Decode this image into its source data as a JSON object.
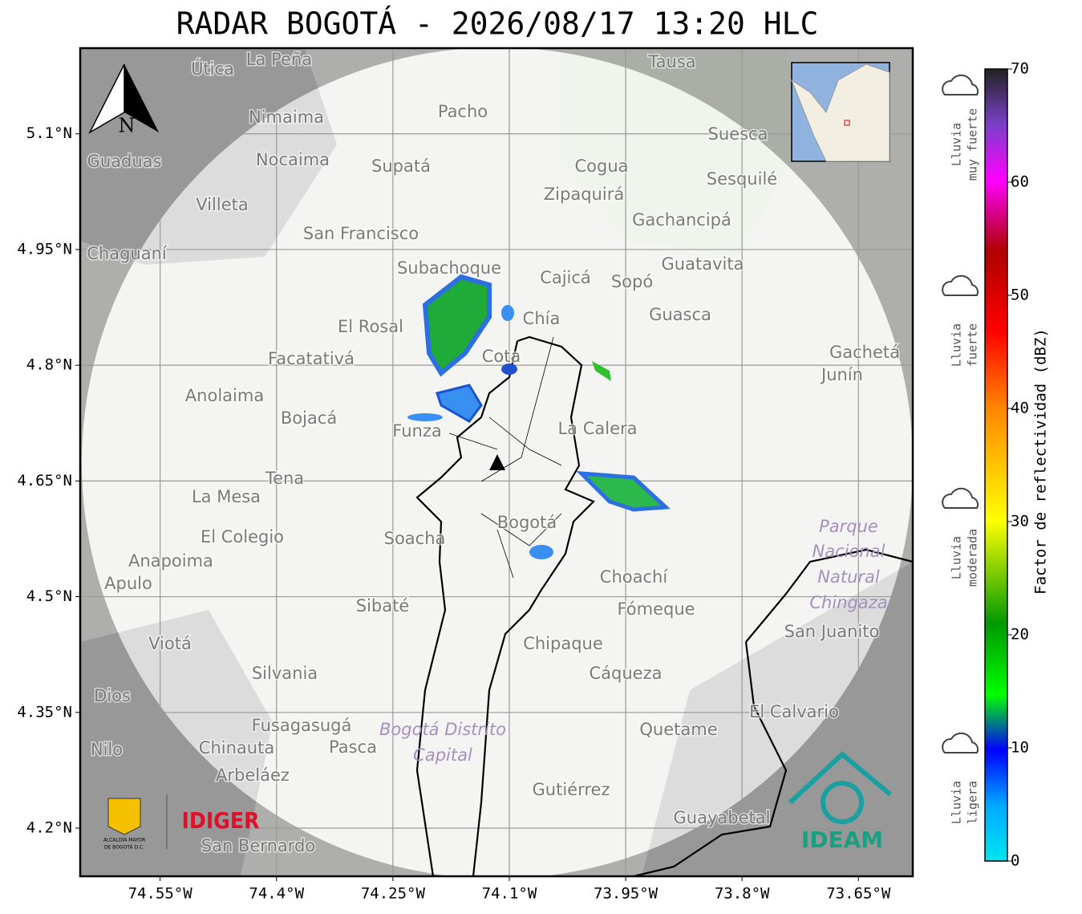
{
  "title": "RADAR BOGOTÁ - 2026/08/17 13:20 HLC",
  "map": {
    "xlim": [
      -74.653,
      -73.58
    ],
    "ylim": [
      4.1376,
      5.211
    ],
    "xticks": [
      {
        "value": -74.55,
        "label": "74.55°W"
      },
      {
        "value": -74.4,
        "label": "74.4°W"
      },
      {
        "value": -74.25,
        "label": "74.25°W"
      },
      {
        "value": -74.1,
        "label": "74.1°W"
      },
      {
        "value": -73.95,
        "label": "73.95°W"
      },
      {
        "value": -73.8,
        "label": "73.8°W"
      },
      {
        "value": -73.65,
        "label": "73.65°W"
      }
    ],
    "yticks": [
      {
        "value": 5.1,
        "label": "5.1°N"
      },
      {
        "value": 4.95,
        "label": "4.95°N"
      },
      {
        "value": 4.8,
        "label": "4.8°N"
      },
      {
        "value": 4.65,
        "label": "4.65°N"
      },
      {
        "value": 4.5,
        "label": "4.5°N"
      },
      {
        "value": 4.35,
        "label": "4.35°N"
      },
      {
        "value": 4.2,
        "label": "4.2°N"
      }
    ],
    "places": [
      "La Peña",
      "Útica",
      "Tausa",
      "Pacho",
      "Nimaima",
      "Guaduas",
      "Nocaima",
      "Supatá",
      "Cogua",
      "Suesca",
      "Sesquilé",
      "Zipaquirá",
      "Villeta",
      "San Francisco",
      "Gachancipá",
      "Chaguaní",
      "Guatavita",
      "Subachoque",
      "Cajicá",
      "Sopó",
      "Guasca",
      "El Rosal",
      "Chía",
      "Cota",
      "Facatativá",
      "Gachetá",
      "Junín",
      "Anolaima",
      "Bojacá",
      "Funza",
      "La Calera",
      "Tena",
      "La Mesa",
      "Bogotá",
      "El Colegio",
      "Soacha",
      "Anapoima",
      "Apulo",
      "Choachí",
      "Sibaté",
      "Fómeque",
      "San Juanito",
      "Viotá",
      "Chipaque",
      "Silvania",
      "Cáqueza",
      "El Calvario",
      "Fusagasugá",
      "Quetame",
      "Chinauta",
      "Pasca",
      "Nilo",
      "Arbeláez",
      "Gutiérrez",
      "Guayabetal",
      "San Bernardo",
      "Dios"
    ],
    "parks": [
      "Parque",
      "Nacional",
      "Natural",
      "Chingaza",
      "Bogotá Distrito",
      "Capital"
    ]
  },
  "north_label": "N",
  "colorbar": {
    "label": "Factor de reflectividad (dBZ)",
    "lim": [
      0,
      70
    ],
    "ticks": [
      0,
      10,
      20,
      30,
      40,
      50,
      60,
      70
    ]
  },
  "legend": [
    {
      "lines": [
        "Lluvia",
        "muy fuerte"
      ]
    },
    {
      "lines": [
        "Lluvia",
        "fuerte"
      ]
    },
    {
      "lines": [
        "Lluvia",
        "moderada"
      ]
    },
    {
      "lines": [
        "Lluvia",
        "ligera"
      ]
    }
  ],
  "logos": {
    "alcaldia": [
      "ALCALDÍA MAYOR",
      "DE BOGOTÁ D.C."
    ],
    "idiger": "IDIGER",
    "ideam": "IDEAM"
  }
}
